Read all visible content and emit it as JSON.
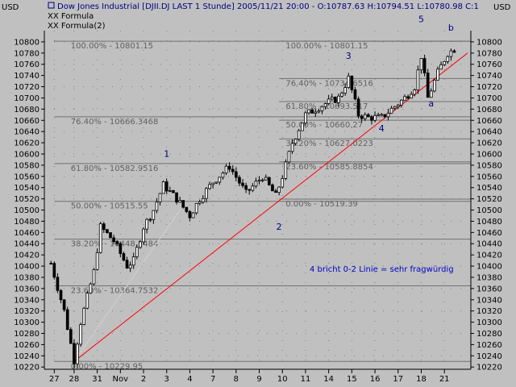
{
  "header": {
    "title": "Dow Jones Industrial [DJII.DJ LAST 1 Stunde] 2005/11/21 20:00 - O:10787.63 H:10794.51 L:10780.98 C:1",
    "legend_1": "XX Formula",
    "legend_2": "XX Formula(2)"
  },
  "axis": {
    "left_unit": "USD",
    "right_unit": "USD",
    "price_ticks": [
      10220,
      10240,
      10260,
      10280,
      10300,
      10320,
      10340,
      10360,
      10380,
      10400,
      10420,
      10440,
      10460,
      10480,
      10500,
      10520,
      10540,
      10560,
      10580,
      10600,
      10620,
      10640,
      10660,
      10680,
      10700,
      10720,
      10740,
      10760,
      10780,
      10800
    ],
    "time_ticks": [
      {
        "label": "27",
        "t": 0
      },
      {
        "label": "28",
        "t": 6
      },
      {
        "label": "31",
        "t": 13
      },
      {
        "label": "Nov",
        "t": 20
      },
      {
        "label": "2",
        "t": 27
      },
      {
        "label": "3",
        "t": 34
      },
      {
        "label": "4",
        "t": 41
      },
      {
        "label": "7",
        "t": 48
      },
      {
        "label": "8",
        "t": 55
      },
      {
        "label": "9",
        "t": 62
      },
      {
        "label": "10",
        "t": 69
      },
      {
        "label": "11",
        "t": 76
      },
      {
        "label": "14",
        "t": 83
      },
      {
        "label": "15",
        "t": 90
      },
      {
        "label": "16",
        "t": 97
      },
      {
        "label": "17",
        "t": 104
      },
      {
        "label": "18",
        "t": 111
      },
      {
        "label": "21",
        "t": 118
      }
    ],
    "time_min": -3,
    "time_max": 126,
    "price_min": 10216,
    "price_max": 10820
  },
  "fib_set_1": {
    "levels": [
      {
        "label": "100.00% - 10801.15",
        "price": 10801.15
      },
      {
        "label": "76.40% - 10666.3468",
        "price": 10666.3468
      },
      {
        "label": "61.80% - 10582.9516",
        "price": 10582.9516
      },
      {
        "label": "50.00% - 10515.55",
        "price": 10515.55
      },
      {
        "label": "38.20% - 10448.1484",
        "price": 10448.1484
      },
      {
        "label": "23.60% - 10364.7532",
        "price": 10364.7532
      },
      {
        "label": "0.00% - 10229.95",
        "price": 10229.95
      }
    ]
  },
  "fib_set_2": {
    "levels": [
      {
        "label": "100.00% - 10801.15",
        "price": 10801.15
      },
      {
        "label": "76.40% - 10734.6516",
        "price": 10734.6516
      },
      {
        "label": "61.80% - 10693.517",
        "price": 10693.517
      },
      {
        "label": "50.00% - 10660.27",
        "price": 10660.27
      },
      {
        "label": "38.20% - 10627.0223",
        "price": 10627.0223
      },
      {
        "label": "23.60% - 10585.8854",
        "price": 10585.8854
      },
      {
        "label": "0.00% - 10519.39",
        "price": 10519.39
      }
    ]
  },
  "annotations": [
    {
      "text": "1",
      "t": 34,
      "price": 10595
    },
    {
      "text": "2",
      "t": 68,
      "price": 10465
    },
    {
      "text": "3",
      "t": 89,
      "price": 10770
    },
    {
      "text": "4",
      "t": 99,
      "price": 10640
    },
    {
      "text": "5",
      "t": 111,
      "price": 10835
    },
    {
      "text": "a",
      "t": 114,
      "price": 10685
    },
    {
      "text": "b",
      "t": 120,
      "price": 10820
    }
  ],
  "note": {
    "text": "4 bricht 0-2 Linie = sehr fragwürdig",
    "t": 99,
    "price": 10390
  },
  "colors": {
    "background": "#c0c0c0",
    "candle_up": "#ffffff",
    "candle_down": "#000000",
    "trend_line": "#ff0000",
    "fib_line": "#808080",
    "annotation": "#000080",
    "note": "#0000c8"
  },
  "chart_data": {
    "type": "candlestick",
    "title": "Dow Jones Industrial [DJII.DJ LAST 1 Stunde]",
    "ylabel": "USD",
    "ylim": [
      10220,
      10800
    ],
    "x_categories": [
      "27",
      "28",
      "31",
      "Nov",
      "2",
      "3",
      "4",
      "7",
      "8",
      "9",
      "10",
      "11",
      "14",
      "15",
      "16",
      "17",
      "18",
      "21"
    ],
    "trend_line": {
      "from": {
        "t": 6,
        "price": 10229.95
      },
      "to": {
        "t": 125,
        "price": 10780
      }
    },
    "gray_line": {
      "from": {
        "t": 6,
        "price": 10229.95
      },
      "to": {
        "t": 38,
        "price": 10500
      }
    },
    "anchors": [
      {
        "t": -1,
        "price": 10405
      },
      {
        "t": 3,
        "price": 10320
      },
      {
        "t": 6,
        "price": 10232
      },
      {
        "t": 8,
        "price": 10300
      },
      {
        "t": 12,
        "price": 10390
      },
      {
        "t": 14,
        "price": 10470
      },
      {
        "t": 18,
        "price": 10445
      },
      {
        "t": 22,
        "price": 10400
      },
      {
        "t": 24,
        "price": 10410
      },
      {
        "t": 27,
        "price": 10470
      },
      {
        "t": 30,
        "price": 10500
      },
      {
        "t": 33,
        "price": 10545
      },
      {
        "t": 37,
        "price": 10520
      },
      {
        "t": 41,
        "price": 10490
      },
      {
        "t": 44,
        "price": 10520
      },
      {
        "t": 48,
        "price": 10550
      },
      {
        "t": 53,
        "price": 10578
      },
      {
        "t": 58,
        "price": 10530
      },
      {
        "t": 63,
        "price": 10560
      },
      {
        "t": 67,
        "price": 10525
      },
      {
        "t": 69,
        "price": 10560
      },
      {
        "t": 72,
        "price": 10620
      },
      {
        "t": 76,
        "price": 10670
      },
      {
        "t": 82,
        "price": 10690
      },
      {
        "t": 86,
        "price": 10700
      },
      {
        "t": 89,
        "price": 10735
      },
      {
        "t": 92,
        "price": 10670
      },
      {
        "t": 95,
        "price": 10665
      },
      {
        "t": 99,
        "price": 10665
      },
      {
        "t": 103,
        "price": 10685
      },
      {
        "t": 106,
        "price": 10700
      },
      {
        "t": 109,
        "price": 10720
      },
      {
        "t": 111,
        "price": 10775
      },
      {
        "t": 113,
        "price": 10700
      },
      {
        "t": 116,
        "price": 10745
      },
      {
        "t": 119,
        "price": 10780
      },
      {
        "t": 121,
        "price": 10787
      }
    ]
  }
}
